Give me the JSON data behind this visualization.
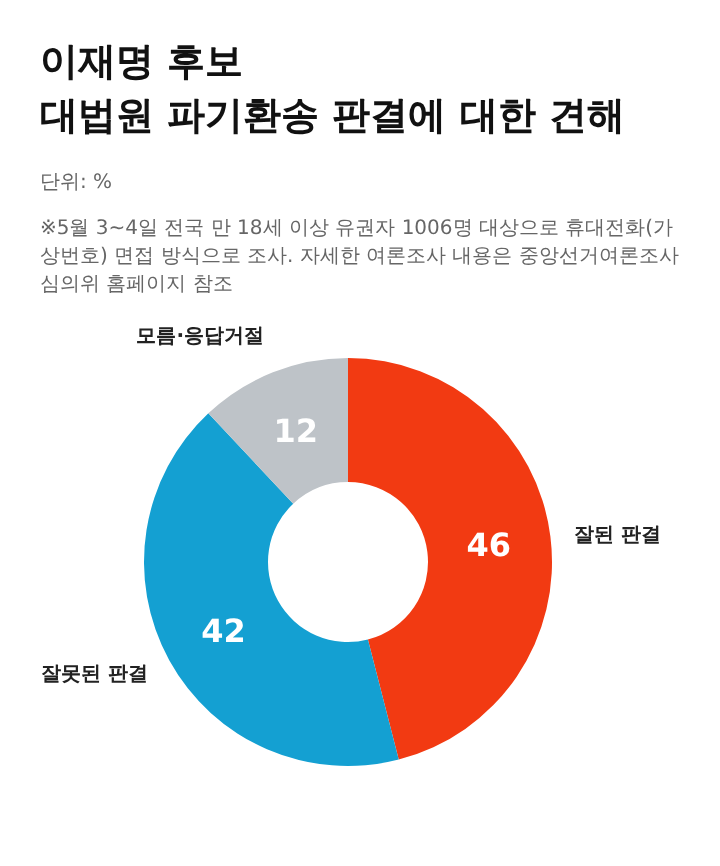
{
  "chart_data": {
    "type": "donut",
    "title": "이재명 후보\n대법원 파기환송 판결에 대한 견해",
    "subtitle": "단위: %",
    "annotations": [
      "※5월 3~4일 전국 만 18세 이상 유권자 1006명 대상으로 휴대전화(가상번호) 면접 방식으로 조사. 자세한 여론조사 내용은 중앙선거여론조사심의위 홈페이지 참조"
    ],
    "categories": [
      "잘된 판결",
      "잘못된 판결",
      "모름·응답거절"
    ],
    "values": [
      46,
      42,
      12
    ],
    "colors": [
      "#f23a12",
      "#14a0d2",
      "#bec3c8"
    ],
    "data_labels": true
  }
}
